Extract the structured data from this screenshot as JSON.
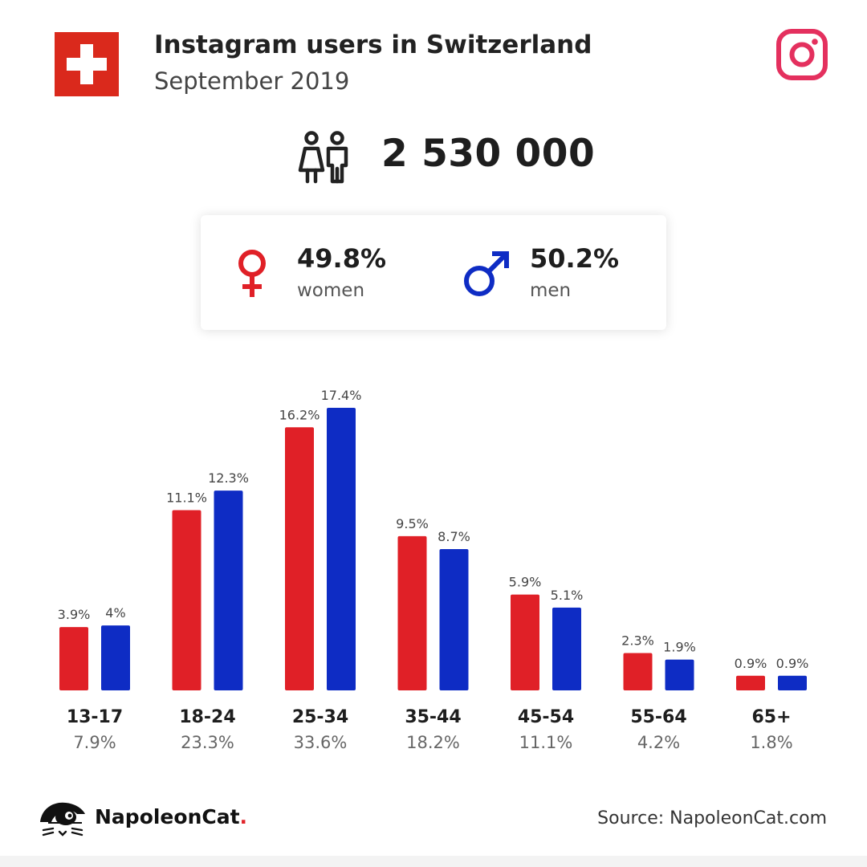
{
  "header": {
    "title": "Instagram users in Switzerland",
    "subtitle": "September 2019",
    "flag_icon": "swiss-flag-icon",
    "platform_icon": "instagram-icon"
  },
  "summary": {
    "users_icon": "users-icon",
    "total_users": "2 530 000"
  },
  "gender": {
    "female": {
      "icon": "female-symbol-icon",
      "percent": "49.8%",
      "label": "women"
    },
    "male": {
      "icon": "male-symbol-icon",
      "percent": "50.2%",
      "label": "men"
    }
  },
  "colors": {
    "women": "#e02027",
    "men": "#0e2cc4",
    "flag_red": "#da291c",
    "instagram_pink": "#e4305e"
  },
  "chart_data": {
    "type": "bar",
    "categories": [
      "13-17",
      "18-24",
      "25-34",
      "35-44",
      "45-54",
      "55-64",
      "65+"
    ],
    "category_totals": [
      "7.9%",
      "23.3%",
      "33.6%",
      "18.2%",
      "11.1%",
      "4.2%",
      "1.8%"
    ],
    "series": [
      {
        "name": "women",
        "color": "#e02027",
        "values": [
          3.9,
          11.1,
          16.2,
          9.5,
          5.9,
          2.3,
          0.9
        ],
        "labels": [
          "3.9%",
          "11.1%",
          "16.2%",
          "9.5%",
          "5.9%",
          "2.3%",
          "0.9%"
        ]
      },
      {
        "name": "men",
        "color": "#0e2cc4",
        "values": [
          4,
          12.3,
          17.4,
          8.7,
          5.1,
          1.9,
          0.9
        ],
        "labels": [
          "4%",
          "12.3%",
          "17.4%",
          "8.7%",
          "5.1%",
          "1.9%",
          "0.9%"
        ]
      }
    ],
    "ylim": [
      0,
      17.4
    ],
    "grid": false,
    "legend": "none"
  },
  "footer": {
    "logo_icon": "napoleoncat-logo-icon",
    "brand_name": "NapoleonCat",
    "brand_dot": ".",
    "source": "Source: NapoleonCat.com"
  }
}
